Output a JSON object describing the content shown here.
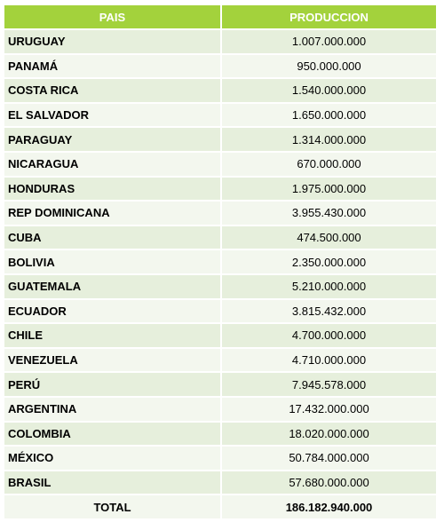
{
  "table": {
    "headers": {
      "country": "PAIS",
      "production": "PRODUCCION"
    },
    "rows": [
      {
        "country": "URUGUAY",
        "production": "1.007.000.000"
      },
      {
        "country": "PANAMÁ",
        "production": "950.000.000"
      },
      {
        "country": "COSTA RICA",
        "production": "1.540.000.000"
      },
      {
        "country": "EL SALVADOR",
        "production": "1.650.000.000"
      },
      {
        "country": "PARAGUAY",
        "production": "1.314.000.000"
      },
      {
        "country": "NICARAGUA",
        "production": "670.000.000"
      },
      {
        "country": "HONDURAS",
        "production": "1.975.000.000"
      },
      {
        "country": "REP DOMINICANA",
        "production": "3.955.430.000"
      },
      {
        "country": "CUBA",
        "production": "474.500.000"
      },
      {
        "country": "BOLIVIA",
        "production": "2.350.000.000"
      },
      {
        "country": "GUATEMALA",
        "production": "5.210.000.000"
      },
      {
        "country": "ECUADOR",
        "production": "3.815.432.000"
      },
      {
        "country": "CHILE",
        "production": "4.700.000.000"
      },
      {
        "country": "VENEZUELA",
        "production": "4.710.000.000"
      },
      {
        "country": "PERÚ",
        "production": "7.945.578.000"
      },
      {
        "country": "ARGENTINA",
        "production": "17.432.000.000"
      },
      {
        "country": "COLOMBIA",
        "production": "18.020.000.000"
      },
      {
        "country": "MÉXICO",
        "production": "50.784.000.000"
      },
      {
        "country": "BRASIL",
        "production": "57.680.000.000"
      }
    ],
    "total": {
      "label": "TOTAL",
      "value": "186.182.940.000"
    }
  },
  "colors": {
    "header": "#a3d23c",
    "row_odd": "#e6efdc",
    "row_even": "#f3f7ee"
  }
}
